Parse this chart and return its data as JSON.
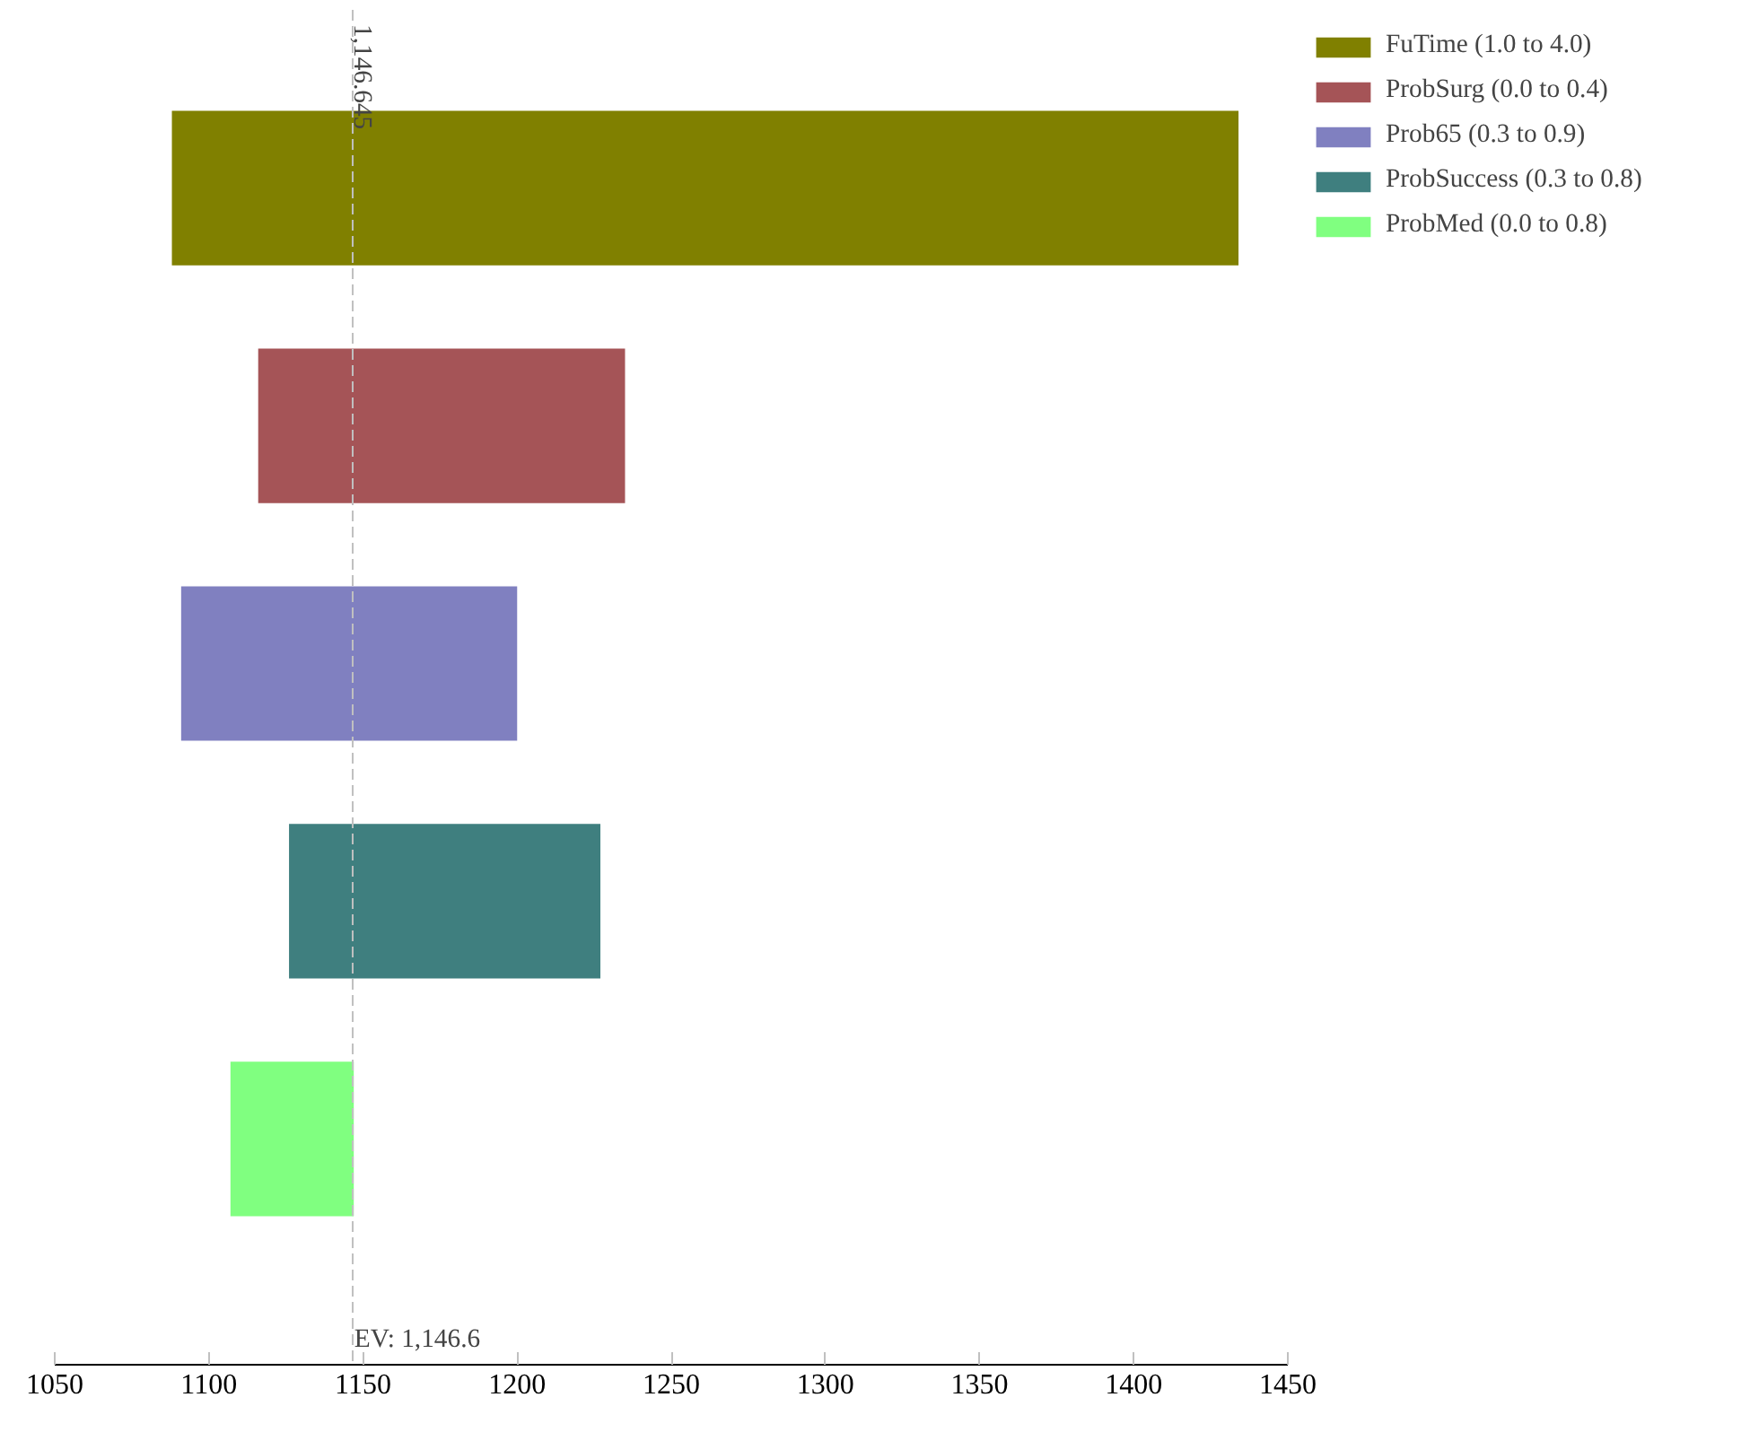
{
  "chart_data": {
    "type": "bar",
    "orientation": "horizontal",
    "categories": [
      null,
      null,
      null,
      null,
      null
    ],
    "series": [
      {
        "name": "FuTime (1.0 to 4.0)",
        "color": "#808000",
        "values": [
          346,
          null,
          null,
          null,
          null
        ],
        "base": [
          1088,
          null,
          null,
          null,
          null
        ]
      },
      {
        "name": "ProbSurg (0.0 to 0.4)",
        "color": "#a55457",
        "values": [
          null,
          119,
          null,
          null,
          null
        ],
        "base": [
          null,
          1116,
          null,
          null,
          null
        ]
      },
      {
        "name": "Prob65 (0.3 to 0.9)",
        "color": "#8080c0",
        "values": [
          null,
          null,
          109,
          null,
          null
        ],
        "base": [
          null,
          null,
          1091,
          null,
          null
        ]
      },
      {
        "name": "ProbSuccess (0.3 to 0.8)",
        "color": "#3f7f7f",
        "values": [
          null,
          null,
          null,
          101,
          null
        ],
        "base": [
          null,
          null,
          null,
          1126,
          null
        ]
      },
      {
        "name": "ProbMed (0.0 to 0.8)",
        "color": "#80ff80",
        "values": [
          null,
          null,
          null,
          null,
          40
        ],
        "base": [
          null,
          null,
          null,
          null,
          1107
        ]
      }
    ],
    "xlim": [
      1050,
      1450
    ],
    "xticks": [
      1050,
      1100,
      1150,
      1200,
      1250,
      1300,
      1350,
      1400,
      1450
    ],
    "ref_lines": [
      {
        "axis": "x",
        "value": 1146.645,
        "label": "1,146.645",
        "color": "#c0c0c0",
        "line_style": "dashed"
      }
    ],
    "annotations": [
      {
        "text": "EV: 1,146.6",
        "x": 1146.6
      }
    ],
    "grid": false,
    "legend": "top right"
  }
}
